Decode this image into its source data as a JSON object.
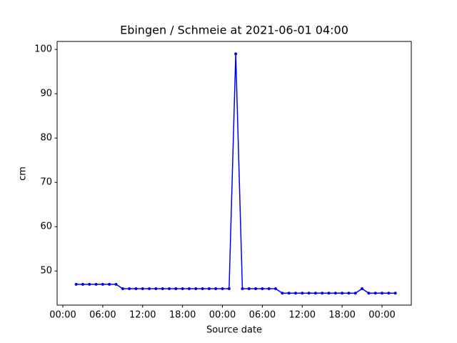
{
  "chart_data": {
    "type": "line",
    "title": "Ebingen / Schmeie at 2021-06-01 04:00",
    "xlabel": "Source date",
    "ylabel": "cm",
    "x": [
      2,
      3,
      4,
      5,
      6,
      7,
      8,
      9,
      10,
      11,
      12,
      13,
      14,
      15,
      16,
      17,
      18,
      19,
      20,
      21,
      22,
      23,
      24,
      25,
      26,
      27,
      28,
      29,
      30,
      31,
      32,
      33,
      34,
      35,
      36,
      37,
      38,
      39,
      40,
      41,
      42,
      43,
      44,
      45,
      46,
      47,
      48,
      49,
      50
    ],
    "series": [
      {
        "name": "cm",
        "color": "#0000ff",
        "values": [
          47,
          47,
          47,
          47,
          47,
          47,
          47,
          46,
          46,
          46,
          46,
          46,
          46,
          46,
          46,
          46,
          46,
          46,
          46,
          46,
          46,
          46,
          46,
          46,
          99,
          46,
          46,
          46,
          46,
          46,
          46,
          45,
          45,
          45,
          45,
          45,
          45,
          45,
          45,
          45,
          45,
          45,
          45,
          46,
          45,
          45,
          45,
          45,
          45
        ]
      }
    ],
    "xlim": [
      -0.86,
      52.4
    ],
    "ylim": [
      42.3,
      101.8
    ],
    "xticks": [
      {
        "value": 0,
        "label": "00:00"
      },
      {
        "value": 6,
        "label": "06:00"
      },
      {
        "value": 12,
        "label": "12:00"
      },
      {
        "value": 18,
        "label": "18:00"
      },
      {
        "value": 24,
        "label": "00:00"
      },
      {
        "value": 30,
        "label": "06:00"
      },
      {
        "value": 36,
        "label": "12:00"
      },
      {
        "value": 42,
        "label": "18:00"
      },
      {
        "value": 48,
        "label": "00:00"
      }
    ],
    "yticks": [
      50,
      60,
      70,
      80,
      90,
      100
    ]
  }
}
